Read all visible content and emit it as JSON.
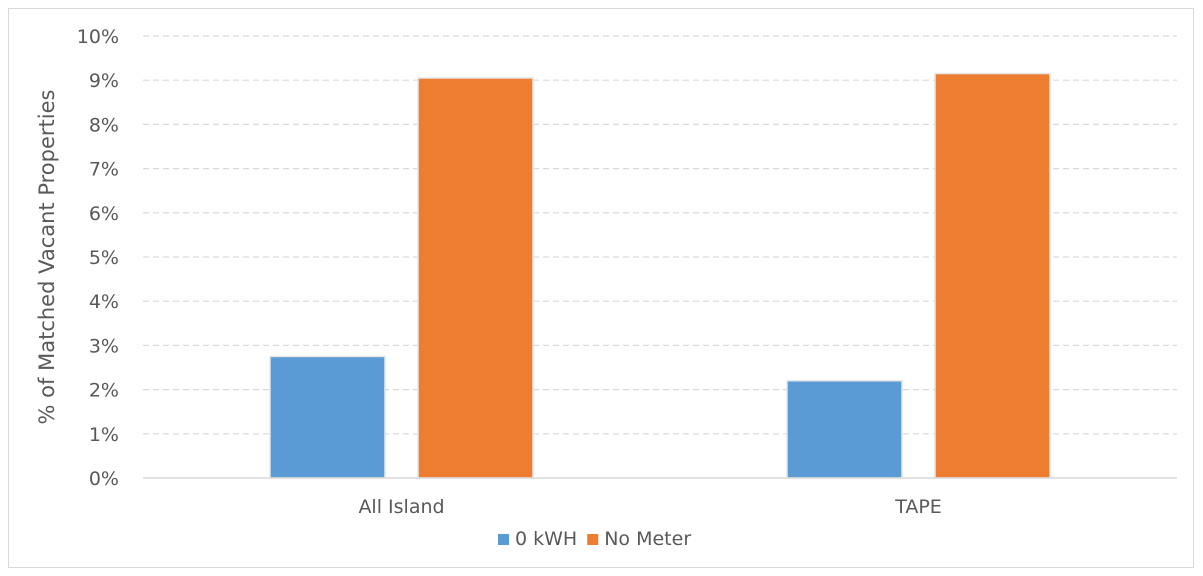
{
  "chart_data": {
    "type": "bar",
    "categories": [
      "All Island",
      "TAPE"
    ],
    "series": [
      {
        "name": "0 kWH",
        "color": "#5b9bd5",
        "values": [
          2.75,
          2.2
        ]
      },
      {
        "name": "No Meter",
        "color": "#ed7d31",
        "values": [
          9.05,
          9.15
        ]
      }
    ],
    "title": "",
    "xlabel": "",
    "ylabel": "% of Matched Vacant Properties",
    "ylim": [
      0,
      10
    ],
    "ytick_step": 1,
    "ytick_suffix": "%",
    "grid": true,
    "grid_style": "dashed",
    "legend_position": "bottom"
  }
}
